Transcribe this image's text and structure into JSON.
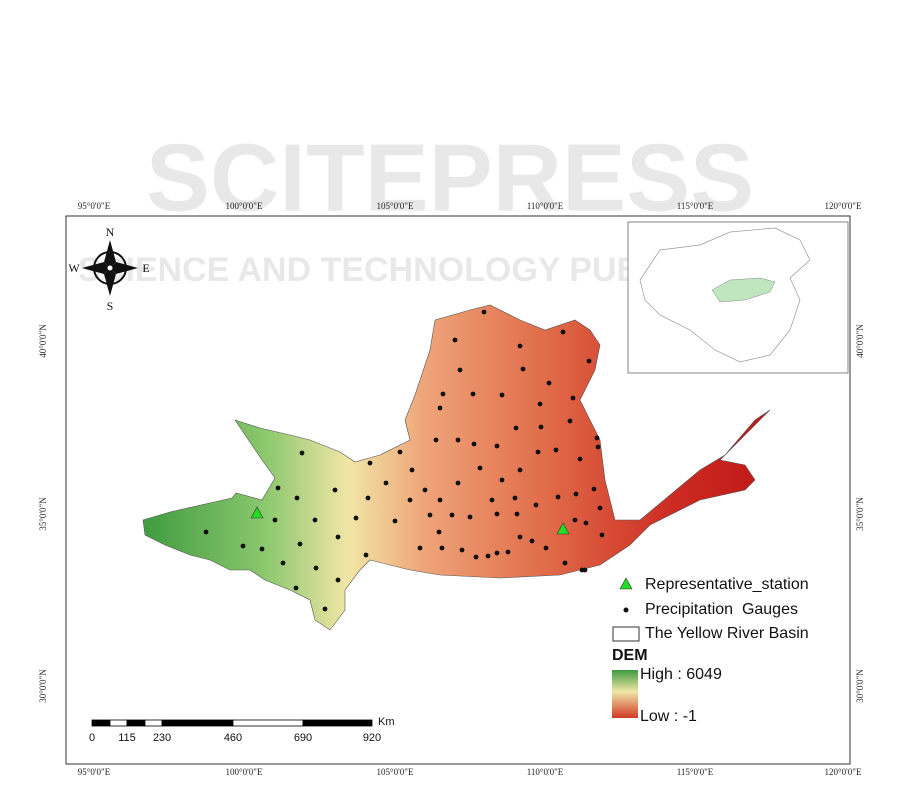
{
  "watermark": {
    "title": "SCITEPRESS",
    "subtitle": "SCIENCE AND TECHNOLOGY PUBLICATIONS"
  },
  "map": {
    "longitude_labels": [
      "95°0'0\"E",
      "100°0'0\"E",
      "105°0'0\"E",
      "110°0'0\"E",
      "115°0'0\"E",
      "120°0'0\"E"
    ],
    "latitude_labels": [
      "40°0'0\"N",
      "35°0'0\"N",
      "30°0'0\"N"
    ],
    "compass": {
      "north": "N",
      "south": "S",
      "west": "W",
      "east": "E"
    },
    "legend": {
      "station": "Representative_station",
      "gauges": "Precipitation  Gauges",
      "basin": "The Yellow River Basin",
      "dem_title": "DEM",
      "high": "High : 6049",
      "low": "Low : -1"
    },
    "scale_bar": {
      "unit": "Km",
      "labels": [
        "0",
        "115",
        "230",
        "460",
        "690",
        "920"
      ]
    }
  }
}
